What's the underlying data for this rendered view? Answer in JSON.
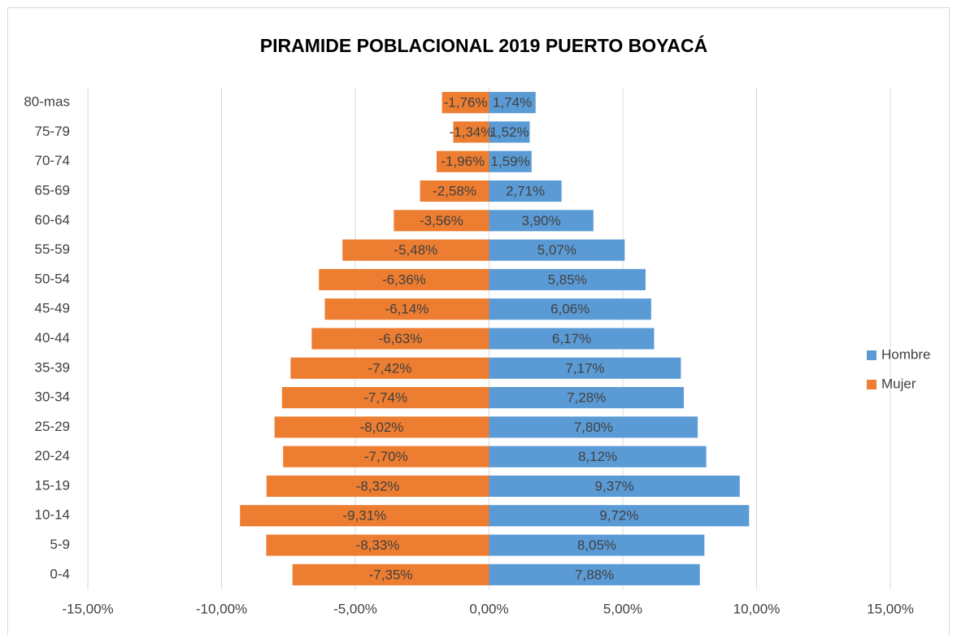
{
  "chart_data": {
    "type": "bar",
    "orientation": "horizontal",
    "stacked": true,
    "title": "PIRAMIDE POBLACIONAL 2019 PUERTO BOYACÁ",
    "categories": [
      "0-4",
      "5-9",
      "10-14",
      "15-19",
      "20-24",
      "25-29",
      "30-34",
      "35-39",
      "40-44",
      "45-49",
      "50-54",
      "55-59",
      "60-64",
      "65-69",
      "70-74",
      "75-79",
      "80-mas"
    ],
    "series": [
      {
        "name": "Hombre",
        "color": "#5b9bd5",
        "values": [
          7.88,
          8.05,
          9.72,
          9.37,
          8.12,
          7.8,
          7.28,
          7.17,
          6.17,
          6.06,
          5.85,
          5.07,
          3.9,
          2.71,
          1.59,
          1.52,
          1.74
        ],
        "value_labels": [
          "7,88%",
          "8,05%",
          "9,72%",
          "9,37%",
          "8,12%",
          "7,80%",
          "7,28%",
          "7,17%",
          "6,17%",
          "6,06%",
          "5,85%",
          "5,07%",
          "3,90%",
          "2,71%",
          "1,59%",
          "1,52%",
          "1,74%"
        ]
      },
      {
        "name": "Mujer",
        "color": "#ed7d31",
        "values": [
          -7.35,
          -8.33,
          -9.31,
          -8.32,
          -7.7,
          -8.02,
          -7.74,
          -7.42,
          -6.63,
          -6.14,
          -6.36,
          -5.48,
          -3.56,
          -2.58,
          -1.96,
          -1.34,
          -1.76
        ],
        "value_labels": [
          "-7,35%",
          "-8,33%",
          "-9,31%",
          "-8,32%",
          "-7,70%",
          "-8,02%",
          "-7,74%",
          "-7,42%",
          "-6,63%",
          "-6,14%",
          "-6,36%",
          "-5,48%",
          "-3,56%",
          "-2,58%",
          "-1,96%",
          "-1,34%",
          "-1,76%"
        ]
      }
    ],
    "xlim": [
      -15,
      15
    ],
    "xticks": [
      {
        "value": -15,
        "label": "-15,00%"
      },
      {
        "value": -10,
        "label": "-10,00%"
      },
      {
        "value": -5,
        "label": "-5,00%"
      },
      {
        "value": 0,
        "label": "0,00%"
      },
      {
        "value": 5,
        "label": "5,00%"
      },
      {
        "value": 10,
        "label": "10,00%"
      },
      {
        "value": 15,
        "label": "15,00%"
      }
    ],
    "grid": true,
    "legend": "right"
  }
}
